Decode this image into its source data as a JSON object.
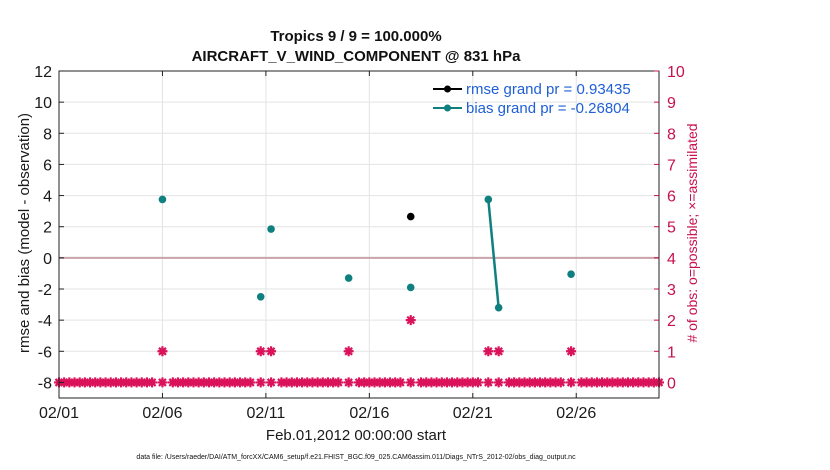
{
  "chart_data": {
    "type": "scatter",
    "title": "Tropics 9 / 9 = 100.000%",
    "subtitle": "AIRCRAFT_V_WIND_COMPONENT @ 831 hPa",
    "xlabel": "Feb.01,2012 00:00:00 start",
    "ylabel": "rmse and bias (model - observation)",
    "y2label": "# of obs: o=possible; ×=assimilated",
    "xlim": [
      0,
      29
    ],
    "ylim": [
      -9,
      12
    ],
    "y2lim": [
      -0.5,
      10
    ],
    "x_ticks": [
      0,
      5,
      10,
      15,
      20,
      25
    ],
    "x_tick_labels": [
      "02/01",
      "02/06",
      "02/11",
      "02/16",
      "02/21",
      "02/26"
    ],
    "y_ticks": [
      -8,
      -6,
      -4,
      -2,
      0,
      2,
      4,
      6,
      8,
      10,
      12
    ],
    "y2_ticks": [
      0,
      1,
      2,
      3,
      4,
      5,
      6,
      7,
      8,
      9,
      10
    ],
    "grid": true,
    "legend_position": "top-right",
    "colors": {
      "rmse": "#000000",
      "bias": "#0f7f7f",
      "obs": "#d9125a",
      "zero_line": "#c9a3a8",
      "legend_text": "#1f5fd6",
      "right_axis": "#c8104f"
    },
    "series": [
      {
        "name": "rmse grand pr = 0.93435",
        "key": "rmse",
        "x": [
          17
        ],
        "y": [
          2.65
        ]
      },
      {
        "name": "bias grand pr = -0.26804",
        "key": "bias",
        "x": [
          5,
          9.75,
          10.25,
          14,
          17,
          20.75,
          21.25,
          24.75
        ],
        "y": [
          3.75,
          -2.5,
          1.85,
          -1.3,
          -1.9,
          3.75,
          -3.2,
          -1.05
        ]
      }
    ],
    "obs_count": {
      "x": [
        5,
        9.75,
        10.25,
        14,
        17,
        20.75,
        21.25,
        24.75
      ],
      "count": [
        1,
        1,
        1,
        1,
        2,
        1,
        1,
        1
      ]
    },
    "zero_obs_x_range": [
      0,
      29
    ],
    "zero_obs_step": 0.25,
    "footnote": "data file: /Users/raeder/DAI/ATM_forcXX/CAM6_setup/f.e21.FHIST_BGC.f09_025.CAM6assim.011/Diags_NTrS_2012-02/obs_diag_output.nc"
  }
}
